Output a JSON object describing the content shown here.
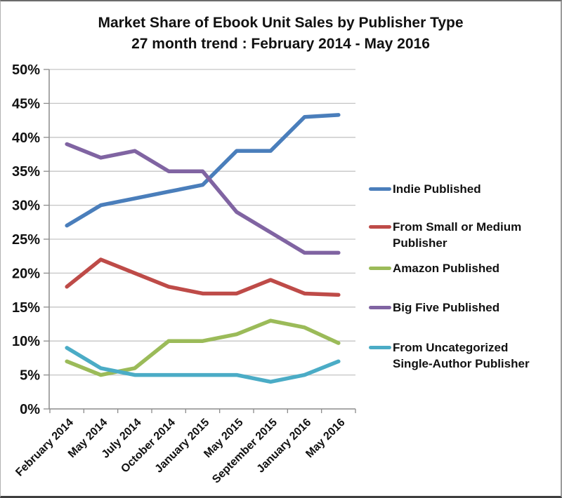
{
  "chart_data": {
    "type": "line",
    "title": "Market Share of Ebook Unit Sales by Publisher Type",
    "subtitle": "27 month trend : February 2014 - May 2016",
    "categories": [
      "February 2014",
      "May 2014",
      "July 2014",
      "October 2014",
      "January 2015",
      "May 2015",
      "September 2015",
      "January 2016",
      "May 2016"
    ],
    "series": [
      {
        "name": "Indie Published",
        "color": "#4A7EBB",
        "values": [
          27,
          30,
          31,
          32,
          33,
          38,
          38,
          43,
          43.3
        ]
      },
      {
        "name": "From Small or Medium Publisher",
        "color": "#BE4B48",
        "values": [
          18,
          22,
          20,
          18,
          17,
          17,
          19,
          17,
          16.8
        ]
      },
      {
        "name": "Amazon Published",
        "color": "#9BBB59",
        "values": [
          7,
          5,
          6,
          10,
          10,
          11,
          13,
          12,
          9.7
        ]
      },
      {
        "name": "Big Five Published",
        "color": "#8064A2",
        "values": [
          39,
          37,
          38,
          35,
          35,
          29,
          26,
          23,
          23
        ]
      },
      {
        "name": "From Uncategorized Single-Author Publisher",
        "color": "#4BACC6",
        "values": [
          9,
          6,
          5,
          5,
          5,
          5,
          4,
          5,
          7
        ]
      }
    ],
    "ylim": [
      0,
      50
    ],
    "y_tick_step": 5,
    "y_tick_labels": [
      "0%",
      "5%",
      "10%",
      "15%",
      "20%",
      "25%",
      "30%",
      "35%",
      "40%",
      "45%",
      "50%"
    ],
    "grid": true,
    "legend_position": "right",
    "colors": {
      "gridline": "#C5C5C5",
      "axis": "#8C8C8C",
      "text": "#111111"
    }
  }
}
